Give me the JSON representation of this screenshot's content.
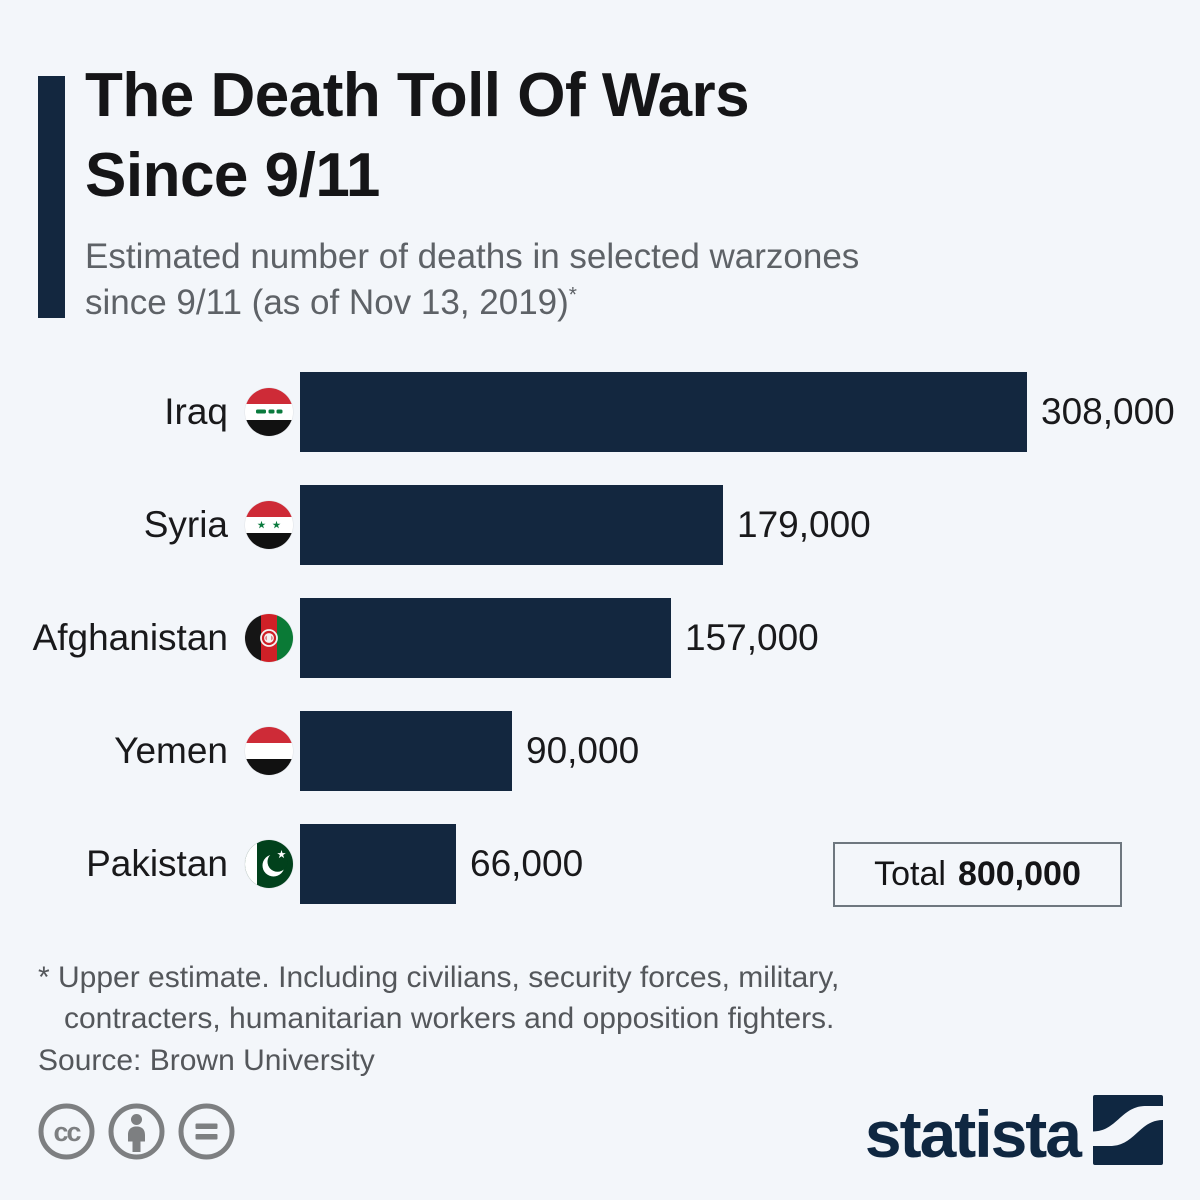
{
  "page": {
    "background_color": "#f3f6fa",
    "accent_color": "#13273f"
  },
  "header": {
    "title_line1": "The Death Toll Of Wars",
    "title_line2": "Since 9/11",
    "subtitle_line1": "Estimated number of deaths in selected warzones",
    "subtitle_line2": "since 9/11 (as of Nov 13, 2019)",
    "footnote_marker": "*"
  },
  "chart_data": {
    "type": "bar",
    "orientation": "horizontal",
    "title": "The Death Toll Of Wars Since 9/11",
    "subtitle": "Estimated number of deaths in selected warzones since 9/11 (as of Nov 13, 2019)*",
    "categories": [
      "Iraq",
      "Syria",
      "Afghanistan",
      "Yemen",
      "Pakistan"
    ],
    "values": [
      308000,
      179000,
      157000,
      90000,
      66000
    ],
    "value_labels": [
      "308,000",
      "179,000",
      "157,000",
      "90,000",
      "66,000"
    ],
    "flags": [
      "iraq",
      "syria",
      "afghanistan",
      "yemen",
      "pakistan"
    ],
    "xlim": [
      0,
      308000
    ],
    "bar_color": "#13273f",
    "grid": false,
    "legend": false,
    "total": 800000
  },
  "total_box": {
    "label": "Total",
    "value": "800,000"
  },
  "footer": {
    "footnote_line1": "* Upper estimate. Including civilians, security forces, military,",
    "footnote_line2": "contracters, humanitarian workers and opposition fighters.",
    "source": "Source: Brown University",
    "license_icons": [
      "cc-icon",
      "attribution-icon",
      "equal-icon"
    ],
    "brand": "statista"
  }
}
